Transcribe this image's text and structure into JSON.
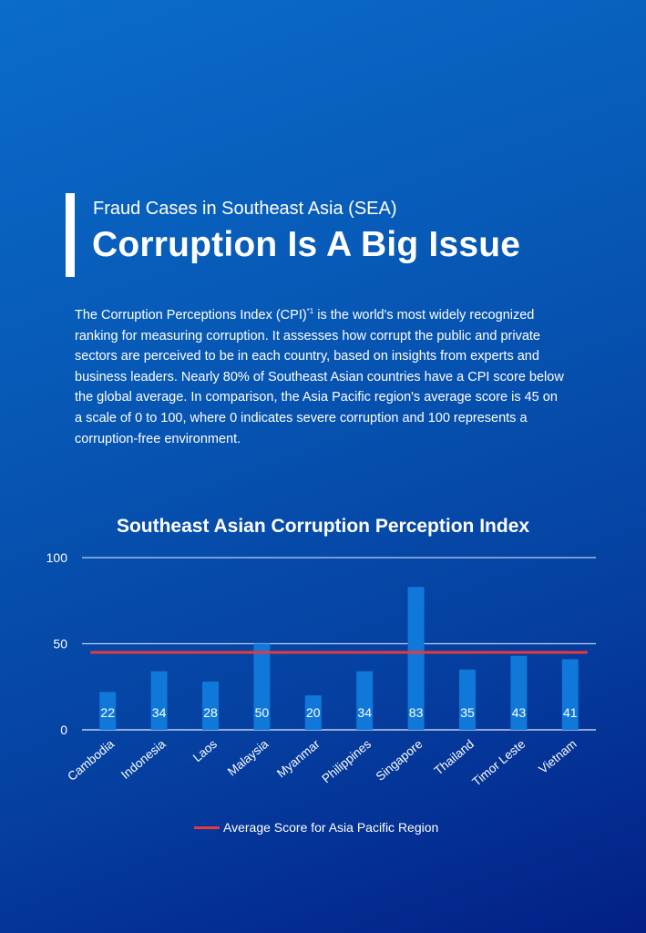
{
  "header": {
    "kicker": "Fraud Cases in Southeast Asia (SEA)",
    "title": "Corruption Is A Big Issue"
  },
  "body": {
    "before_sup": "The Corruption Perceptions Index (CPI)",
    "sup": "*1",
    "after_sup": " is the world's most widely recognized ranking for measuring corruption. It assesses how corrupt the public and private sectors are perceived to be in each country, based on insights from experts and business leaders. Nearly 80% of Southeast Asian countries have a CPI score below the global average. In comparison, the Asia Pacific region's average score is 45 on a scale of 0 to 100, where 0 indicates severe corruption and 100 represents a corruption-free environment."
  },
  "chart_data": {
    "type": "bar",
    "title": "Southeast Asian Corruption Perception Index",
    "categories": [
      "Cambodia",
      "Indonesia",
      "Laos",
      "Malaysia",
      "Myanmar",
      "Philippines",
      "Singapore",
      "Thailand",
      "Timor Leste",
      "Vietnam"
    ],
    "series": [
      {
        "values": [
          22,
          34,
          28,
          50,
          20,
          34,
          83,
          35,
          43,
          41
        ],
        "color": "#0f78d8"
      }
    ],
    "reference_line": {
      "name": "Average Score for Asia Pacific Region",
      "value": 45,
      "color": "#e83a3a"
    },
    "yticks": [
      0,
      50,
      100
    ],
    "ylim": [
      0,
      100
    ],
    "grid": true,
    "data_labels": true,
    "legend_position": "bottom"
  }
}
